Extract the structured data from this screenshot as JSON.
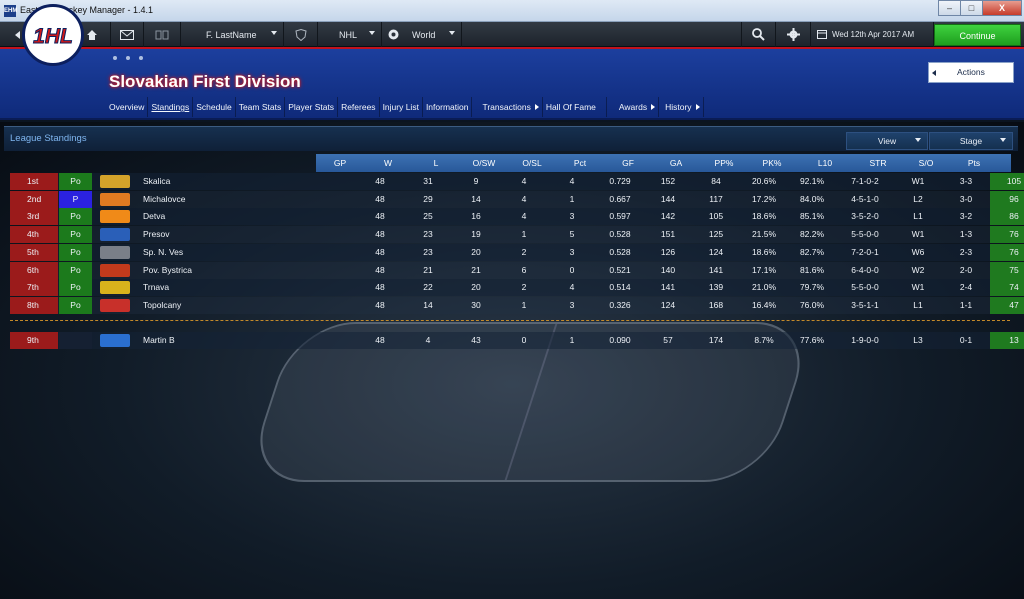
{
  "window": {
    "title": "Eastside Hockey Manager - 1.4.1",
    "app_icon_text": "EHM",
    "buttons": [
      "–",
      "□",
      "X"
    ]
  },
  "toolbar": {
    "manager_name": "F. LastName",
    "league_select": "NHL",
    "region_select": "World",
    "date": "Wed 12th Apr 2017 AM",
    "continue_label": "Continue"
  },
  "header": {
    "logo_text": "1HL",
    "league_title": "Slovakian First Division",
    "actions_label": "Actions",
    "tabs": [
      {
        "label": "Overview"
      },
      {
        "label": "Standings"
      },
      {
        "label": "Schedule"
      },
      {
        "label": "Team Stats"
      },
      {
        "label": "Player Stats"
      },
      {
        "label": "Referees"
      },
      {
        "label": "Injury List"
      },
      {
        "label": "Information"
      },
      {
        "label": "Transactions"
      },
      {
        "label": "Hall Of Fame"
      },
      {
        "label": "Awards"
      },
      {
        "label": "History"
      }
    ]
  },
  "panel": {
    "title": "League Standings",
    "view_label": "View",
    "stage_label": "Stage"
  },
  "table": {
    "columns": [
      "GP",
      "W",
      "L",
      "O/SW",
      "O/SL",
      "Pct",
      "GF",
      "GA",
      "PP%",
      "PK%",
      "L10",
      "STR",
      "S/O",
      "Pts"
    ],
    "rows": [
      {
        "rank": "1st",
        "qual": "Po",
        "logo_color": "#d4a32a",
        "team": "Skalica",
        "gp": "48",
        "w": "31",
        "l": "9",
        "osw": "4",
        "osl": "4",
        "pct": "0.729",
        "gf": "152",
        "ga": "84",
        "pp": "20.6%",
        "pk": "92.1%",
        "l10": "7-1-0-2",
        "str": "W1",
        "so": "3-3",
        "pts": "105"
      },
      {
        "rank": "2nd",
        "qual": "P",
        "logo_color": "#e07a21",
        "team": "Michalovce",
        "gp": "48",
        "w": "29",
        "l": "14",
        "osw": "4",
        "osl": "1",
        "pct": "0.667",
        "gf": "144",
        "ga": "117",
        "pp": "17.2%",
        "pk": "84.0%",
        "l10": "4-5-1-0",
        "str": "L2",
        "so": "3-0",
        "pts": "96"
      },
      {
        "rank": "3rd",
        "qual": "Po",
        "logo_color": "#f08a18",
        "team": "Detva",
        "gp": "48",
        "w": "25",
        "l": "16",
        "osw": "4",
        "osl": "3",
        "pct": "0.597",
        "gf": "142",
        "ga": "105",
        "pp": "18.6%",
        "pk": "85.1%",
        "l10": "3-5-2-0",
        "str": "L1",
        "so": "3-2",
        "pts": "86"
      },
      {
        "rank": "4th",
        "qual": "Po",
        "logo_color": "#2a5fb8",
        "team": "Presov",
        "gp": "48",
        "w": "23",
        "l": "19",
        "osw": "1",
        "osl": "5",
        "pct": "0.528",
        "gf": "151",
        "ga": "125",
        "pp": "21.5%",
        "pk": "82.2%",
        "l10": "5-5-0-0",
        "str": "W1",
        "so": "1-3",
        "pts": "76"
      },
      {
        "rank": "5th",
        "qual": "Po",
        "logo_color": "#7a7f88",
        "team": "Sp. N. Ves",
        "gp": "48",
        "w": "23",
        "l": "20",
        "osw": "2",
        "osl": "3",
        "pct": "0.528",
        "gf": "126",
        "ga": "124",
        "pp": "18.6%",
        "pk": "82.7%",
        "l10": "7-2-0-1",
        "str": "W6",
        "so": "2-3",
        "pts": "76"
      },
      {
        "rank": "6th",
        "qual": "Po",
        "logo_color": "#c23a1c",
        "team": "Pov. Bystrica",
        "gp": "48",
        "w": "21",
        "l": "21",
        "osw": "6",
        "osl": "0",
        "pct": "0.521",
        "gf": "140",
        "ga": "141",
        "pp": "17.1%",
        "pk": "81.6%",
        "l10": "6-4-0-0",
        "str": "W2",
        "so": "2-0",
        "pts": "75"
      },
      {
        "rank": "7th",
        "qual": "Po",
        "logo_color": "#d8b21c",
        "team": "Trnava",
        "gp": "48",
        "w": "22",
        "l": "20",
        "osw": "2",
        "osl": "4",
        "pct": "0.514",
        "gf": "141",
        "ga": "139",
        "pp": "21.0%",
        "pk": "79.7%",
        "l10": "5-5-0-0",
        "str": "W1",
        "so": "2-4",
        "pts": "74"
      },
      {
        "rank": "8th",
        "qual": "Po",
        "logo_color": "#c8302a",
        "team": "Topolcany",
        "gp": "48",
        "w": "14",
        "l": "30",
        "osw": "1",
        "osl": "3",
        "pct": "0.326",
        "gf": "124",
        "ga": "168",
        "pp": "16.4%",
        "pk": "76.0%",
        "l10": "3-5-1-1",
        "str": "L1",
        "so": "1-1",
        "pts": "47"
      }
    ],
    "extra_rows": [
      {
        "rank": "9th",
        "qual": "",
        "logo_color": "#2a6fd0",
        "team": "Martin B",
        "gp": "48",
        "w": "4",
        "l": "43",
        "osw": "0",
        "osl": "1",
        "pct": "0.090",
        "gf": "57",
        "ga": "174",
        "pp": "8.7%",
        "pk": "77.6%",
        "l10": "1-9-0-0",
        "str": "L3",
        "so": "0-1",
        "pts": "13"
      }
    ]
  }
}
